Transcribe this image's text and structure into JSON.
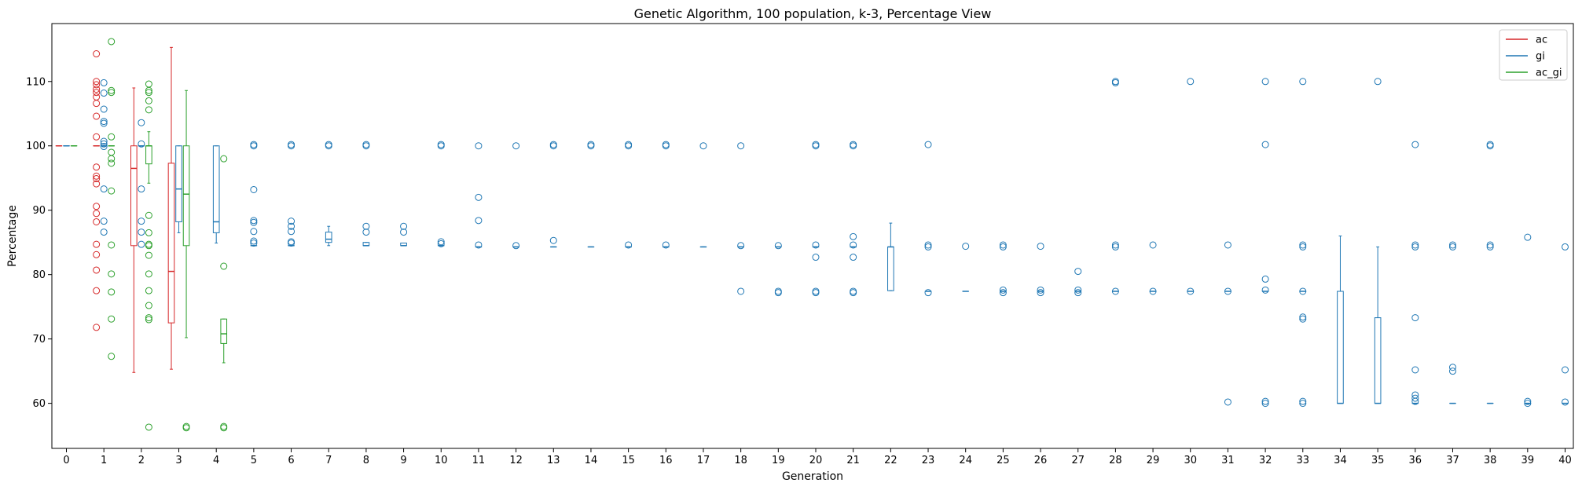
{
  "chart_data": {
    "type": "box",
    "title": "Genetic Algorithm, 100 population, k-3, Percentage View",
    "xlabel": "Generation",
    "ylabel": "Percentage",
    "ylim": [
      53,
      119
    ],
    "yticks": [
      60,
      70,
      80,
      90,
      100,
      110
    ],
    "categories": [
      "0",
      "1",
      "2",
      "3",
      "4",
      "5",
      "6",
      "7",
      "8",
      "9",
      "10",
      "11",
      "12",
      "13",
      "14",
      "15",
      "16",
      "17",
      "18",
      "19",
      "20",
      "21",
      "22",
      "23",
      "24",
      "25",
      "26",
      "27",
      "28",
      "29",
      "30",
      "31",
      "32",
      "33",
      "34",
      "35",
      "36",
      "37",
      "38",
      "39",
      "40"
    ],
    "legend": {
      "position": "top-right",
      "entries": [
        {
          "name": "ac",
          "color": "#d62728"
        },
        {
          "name": "gi",
          "color": "#1f77b4"
        },
        {
          "name": "ac_gi",
          "color": "#2ca02c"
        }
      ]
    },
    "series": [
      {
        "name": "ac",
        "color": "#d62728",
        "offset": -0.2,
        "boxes": [
          {
            "x": "0",
            "q1": 100,
            "median": 100,
            "q3": 100,
            "whislo": 100,
            "whishi": 100,
            "fliers": []
          },
          {
            "x": "1",
            "q1": 100,
            "median": 100,
            "q3": 100,
            "whislo": 100,
            "whishi": 100,
            "fliers": [
              114.3,
              110,
              109.5,
              108.8,
              108.3,
              107.6,
              106.6,
              104.6,
              101.4,
              96.7,
              95.3,
              94.9,
              94.1,
              90.6,
              89.5,
              88.2,
              84.7,
              83.1,
              80.7,
              77.5,
              71.8
            ]
          },
          {
            "x": "2",
            "q1": 84.5,
            "median": 96.5,
            "q3": 100,
            "whislo": 64.8,
            "whishi": 109,
            "fliers": []
          },
          {
            "x": "3",
            "q1": 72.5,
            "median": 80.5,
            "q3": 97.3,
            "whislo": 65.3,
            "whishi": 115.3,
            "fliers": []
          }
        ]
      },
      {
        "name": "gi",
        "color": "#1f77b4",
        "offset": 0,
        "boxes": [
          {
            "x": "0",
            "q1": 100,
            "median": 100,
            "q3": 100,
            "whislo": 100,
            "whishi": 100,
            "fliers": []
          },
          {
            "x": "1",
            "q1": 100,
            "median": 100,
            "q3": 100,
            "whislo": 100,
            "whishi": 100,
            "fliers": [
              109.8,
              108.2,
              105.7,
              103.8,
              103.5,
              100.7,
              100.3,
              99.9,
              93.3,
              88.3,
              86.6
            ]
          },
          {
            "x": "2",
            "q1": 100,
            "median": 100,
            "q3": 100,
            "whislo": 100,
            "whishi": 100,
            "fliers": [
              103.6,
              100.3,
              93.3,
              88.3,
              86.6,
              84.7
            ]
          },
          {
            "x": "3",
            "q1": 88.2,
            "median": 93.3,
            "q3": 100,
            "whislo": 86.5,
            "whishi": 100,
            "fliers": []
          },
          {
            "x": "4",
            "q1": 86.5,
            "median": 88.2,
            "q3": 100,
            "whislo": 84.9,
            "whishi": 100,
            "fliers": []
          },
          {
            "x": "5",
            "q1": 84.5,
            "median": 84.5,
            "q3": 84.5,
            "whislo": 84.5,
            "whishi": 84.5,
            "fliers": [
              100,
              100.2,
              93.2,
              88.4,
              88.1,
              86.7,
              85.2,
              84.9
            ]
          },
          {
            "x": "6",
            "q1": 84.5,
            "median": 84.5,
            "q3": 84.5,
            "whislo": 84.5,
            "whishi": 84.5,
            "fliers": [
              100,
              100.2,
              88.3,
              87.5,
              86.7,
              85.1,
              84.9
            ]
          },
          {
            "x": "7",
            "q1": 85.0,
            "median": 85.5,
            "q3": 86.6,
            "whislo": 84.5,
            "whishi": 87.5,
            "fliers": [
              100,
              100.2
            ]
          },
          {
            "x": "8",
            "q1": 84.5,
            "median": 84.5,
            "q3": 85.0,
            "whislo": 84.5,
            "whishi": 85.0,
            "fliers": [
              100,
              100.2,
              87.5,
              86.6
            ]
          },
          {
            "x": "9",
            "q1": 84.5,
            "median": 84.5,
            "q3": 84.9,
            "whislo": 84.5,
            "whishi": 84.9,
            "fliers": [
              87.5,
              86.6
            ]
          },
          {
            "x": "10",
            "q1": 84.5,
            "median": 84.5,
            "q3": 84.5,
            "whislo": 84.5,
            "whishi": 84.5,
            "fliers": [
              100,
              100.2,
              85.1,
              84.8
            ]
          },
          {
            "x": "11",
            "q1": 84.3,
            "median": 84.3,
            "q3": 84.3,
            "whislo": 84.3,
            "whishi": 84.3,
            "fliers": [
              100,
              92.0,
              88.4,
              84.6
            ]
          },
          {
            "x": "12",
            "q1": 84.3,
            "median": 84.3,
            "q3": 84.3,
            "whislo": 84.3,
            "whishi": 84.3,
            "fliers": [
              100,
              84.5
            ]
          },
          {
            "x": "13",
            "q1": 84.3,
            "median": 84.3,
            "q3": 84.3,
            "whislo": 84.3,
            "whishi": 84.3,
            "fliers": [
              100,
              100.2,
              85.3
            ]
          },
          {
            "x": "14",
            "q1": 84.3,
            "median": 84.3,
            "q3": 84.3,
            "whislo": 84.3,
            "whishi": 84.3,
            "fliers": [
              100,
              100.2
            ]
          },
          {
            "x": "15",
            "q1": 84.3,
            "median": 84.3,
            "q3": 84.3,
            "whislo": 84.3,
            "whishi": 84.3,
            "fliers": [
              100,
              100.2,
              84.6
            ]
          },
          {
            "x": "16",
            "q1": 84.3,
            "median": 84.3,
            "q3": 84.3,
            "whislo": 84.3,
            "whishi": 84.3,
            "fliers": [
              100,
              100.2,
              84.6
            ]
          },
          {
            "x": "17",
            "q1": 84.3,
            "median": 84.3,
            "q3": 84.3,
            "whislo": 84.3,
            "whishi": 84.3,
            "fliers": [
              100
            ]
          },
          {
            "x": "18",
            "q1": 84.3,
            "median": 84.3,
            "q3": 84.3,
            "whislo": 84.3,
            "whishi": 84.3,
            "fliers": [
              100,
              84.5,
              77.4
            ]
          },
          {
            "x": "19",
            "q1": 84.3,
            "median": 84.3,
            "q3": 84.3,
            "whislo": 84.3,
            "whishi": 84.3,
            "fliers": [
              84.5,
              77.4,
              77.2
            ]
          },
          {
            "x": "20",
            "q1": 84.3,
            "median": 84.3,
            "q3": 84.3,
            "whislo": 84.3,
            "whishi": 84.3,
            "fliers": [
              100,
              100.2,
              84.6,
              82.7,
              77.4,
              77.2
            ]
          },
          {
            "x": "21",
            "q1": 84.3,
            "median": 84.3,
            "q3": 84.3,
            "whislo": 84.3,
            "whishi": 84.3,
            "fliers": [
              100,
              100.2,
              85.9,
              84.6,
              82.7,
              77.4,
              77.2
            ]
          },
          {
            "x": "22",
            "q1": 77.5,
            "median": 84.3,
            "q3": 84.3,
            "whislo": 77.5,
            "whishi": 88.0,
            "fliers": []
          },
          {
            "x": "23",
            "q1": 77.4,
            "median": 77.4,
            "q3": 77.4,
            "whislo": 77.4,
            "whishi": 77.4,
            "fliers": [
              100.2,
              84.6,
              84.3,
              77.2
            ]
          },
          {
            "x": "24",
            "q1": 77.4,
            "median": 77.4,
            "q3": 77.4,
            "whislo": 77.4,
            "whishi": 77.4,
            "fliers": [
              84.4
            ]
          },
          {
            "x": "25",
            "q1": 77.4,
            "median": 77.4,
            "q3": 77.4,
            "whislo": 77.4,
            "whishi": 77.4,
            "fliers": [
              84.6,
              84.3,
              77.6,
              77.2
            ]
          },
          {
            "x": "26",
            "q1": 77.4,
            "median": 77.4,
            "q3": 77.4,
            "whislo": 77.4,
            "whishi": 77.4,
            "fliers": [
              84.4,
              77.6,
              77.2
            ]
          },
          {
            "x": "27",
            "q1": 77.4,
            "median": 77.4,
            "q3": 77.4,
            "whislo": 77.4,
            "whishi": 77.4,
            "fliers": [
              80.5,
              77.6,
              77.2
            ]
          },
          {
            "x": "28",
            "q1": 77.4,
            "median": 77.4,
            "q3": 77.4,
            "whislo": 77.4,
            "whishi": 77.4,
            "fliers": [
              110,
              109.8,
              84.6,
              84.3,
              77.4
            ]
          },
          {
            "x": "29",
            "q1": 77.4,
            "median": 77.4,
            "q3": 77.4,
            "whislo": 77.4,
            "whishi": 77.4,
            "fliers": [
              84.6,
              77.4
            ]
          },
          {
            "x": "30",
            "q1": 77.4,
            "median": 77.4,
            "q3": 77.4,
            "whislo": 77.4,
            "whishi": 77.4,
            "fliers": [
              110,
              77.4
            ]
          },
          {
            "x": "31",
            "q1": 77.4,
            "median": 77.4,
            "q3": 77.4,
            "whislo": 77.4,
            "whishi": 77.4,
            "fliers": [
              84.6,
              77.4,
              60.2
            ]
          },
          {
            "x": "32",
            "q1": 77.4,
            "median": 77.4,
            "q3": 77.4,
            "whislo": 77.4,
            "whishi": 77.4,
            "fliers": [
              110,
              100.2,
              79.3,
              77.6,
              60.3,
              60.0
            ]
          },
          {
            "x": "33",
            "q1": 77.4,
            "median": 77.4,
            "q3": 77.4,
            "whislo": 77.4,
            "whishi": 77.4,
            "fliers": [
              110,
              84.6,
              84.3,
              77.4,
              73.4,
              73.1,
              60.3,
              60.0
            ]
          },
          {
            "x": "34",
            "q1": 60.0,
            "median": 60.0,
            "q3": 77.4,
            "whislo": 60.0,
            "whishi": 86.0,
            "fliers": []
          },
          {
            "x": "35",
            "q1": 60.0,
            "median": 60.0,
            "q3": 73.3,
            "whislo": 60.0,
            "whishi": 84.3,
            "fliers": [
              110
            ]
          },
          {
            "x": "36",
            "q1": 60.0,
            "median": 60.0,
            "q3": 60.0,
            "whislo": 60.0,
            "whishi": 60.0,
            "fliers": [
              100.2,
              84.6,
              84.3,
              73.3,
              65.2,
              61.3,
              60.8,
              60.3
            ]
          },
          {
            "x": "37",
            "q1": 60.0,
            "median": 60.0,
            "q3": 60.0,
            "whislo": 60.0,
            "whishi": 60.0,
            "fliers": [
              84.6,
              84.3,
              65.6,
              65.0
            ]
          },
          {
            "x": "38",
            "q1": 60.0,
            "median": 60.0,
            "q3": 60.0,
            "whislo": 60.0,
            "whishi": 60.0,
            "fliers": [
              100,
              100.2,
              84.6,
              84.3
            ]
          },
          {
            "x": "39",
            "q1": 60.0,
            "median": 60.0,
            "q3": 60.0,
            "whislo": 60.0,
            "whishi": 60.0,
            "fliers": [
              85.8,
              60.3,
              60.0
            ]
          },
          {
            "x": "40",
            "q1": 60.0,
            "median": 60.0,
            "q3": 60.0,
            "whislo": 60.0,
            "whishi": 60.0,
            "fliers": [
              84.3,
              65.2,
              60.2
            ]
          }
        ]
      },
      {
        "name": "ac_gi",
        "color": "#2ca02c",
        "offset": 0.2,
        "boxes": [
          {
            "x": "0",
            "q1": 100,
            "median": 100,
            "q3": 100,
            "whislo": 100,
            "whishi": 100,
            "fliers": []
          },
          {
            "x": "1",
            "q1": 100,
            "median": 100,
            "q3": 100,
            "whislo": 100,
            "whishi": 100,
            "fliers": [
              116.2,
              108.6,
              108.3,
              101.4,
              99.0,
              98.0,
              97.3,
              93.0,
              84.6,
              80.1,
              77.3,
              73.1,
              67.3
            ]
          },
          {
            "x": "2",
            "q1": 97.2,
            "median": 100,
            "q3": 100,
            "whislo": 94.2,
            "whishi": 102.2,
            "fliers": [
              109.6,
              108.6,
              108.3,
              107.0,
              105.6,
              89.2,
              86.5,
              84.7,
              84.5,
              83.0,
              80.1,
              77.5,
              75.2,
              73.3,
              73.0,
              56.3
            ]
          },
          {
            "x": "3",
            "q1": 84.5,
            "median": 92.5,
            "q3": 100,
            "whislo": 70.2,
            "whishi": 108.6,
            "fliers": [
              56.4,
              56.2
            ]
          },
          {
            "x": "4",
            "q1": 69.3,
            "median": 70.8,
            "q3": 73.1,
            "whislo": 66.3,
            "whishi": 73.1,
            "fliers": [
              98.0,
              81.3,
              56.4,
              56.2
            ]
          }
        ]
      }
    ]
  }
}
